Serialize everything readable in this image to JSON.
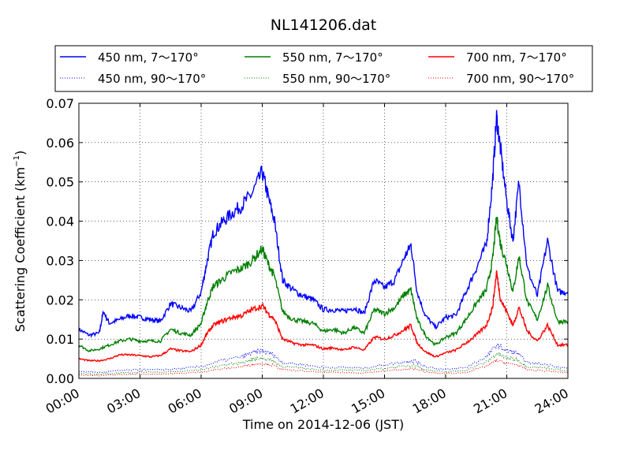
{
  "chart_data": {
    "type": "line",
    "title": "NL141206.dat",
    "xlabel": "Time on 2014-12-06 (JST)",
    "ylabel": "Scattering Coefficient (km",
    "ylabel_sup": "−1",
    "ylabel_end": ")",
    "x_unit": "hours",
    "xlim": [
      0,
      24
    ],
    "ylim": [
      0,
      0.07
    ],
    "x_ticks": [
      0,
      3,
      6,
      9,
      12,
      15,
      18,
      21,
      24
    ],
    "x_tick_labels": [
      "00:00",
      "03:00",
      "06:00",
      "09:00",
      "12:00",
      "15:00",
      "18:00",
      "21:00",
      "24:00"
    ],
    "y_ticks": [
      0,
      0.01,
      0.02,
      0.03,
      0.04,
      0.05,
      0.06,
      0.07
    ],
    "y_tick_labels": [
      "0.00",
      "0.01",
      "0.02",
      "0.03",
      "0.04",
      "0.05",
      "0.06",
      "0.07"
    ],
    "grid": true,
    "legend_position": "top, above plot, 3 columns",
    "series": [
      {
        "name": "450 nm, 7～170°",
        "color": "#0000ff",
        "style": "solid",
        "x": [
          0,
          0.5,
          1,
          1.2,
          1.5,
          2,
          2.5,
          3,
          3.5,
          4,
          4.5,
          5,
          5.5,
          6,
          6.3,
          6.6,
          7,
          7.5,
          8,
          8.5,
          9,
          9.3,
          9.6,
          10,
          10.5,
          11,
          11.5,
          12,
          12.5,
          13,
          13.5,
          14,
          14.5,
          15,
          15.5,
          16,
          16.3,
          16.6,
          17,
          17.5,
          18,
          18.5,
          19,
          19.5,
          20,
          20.3,
          20.5,
          20.7,
          21,
          21.3,
          21.6,
          22,
          22.5,
          23,
          23.5,
          24
        ],
        "y": [
          0.0125,
          0.011,
          0.0115,
          0.017,
          0.014,
          0.015,
          0.016,
          0.0155,
          0.015,
          0.0145,
          0.019,
          0.018,
          0.017,
          0.022,
          0.03,
          0.037,
          0.0395,
          0.042,
          0.044,
          0.047,
          0.0525,
          0.046,
          0.04,
          0.025,
          0.0225,
          0.021,
          0.02,
          0.0175,
          0.0175,
          0.017,
          0.018,
          0.0165,
          0.025,
          0.023,
          0.025,
          0.031,
          0.034,
          0.022,
          0.016,
          0.013,
          0.0155,
          0.016,
          0.022,
          0.028,
          0.034,
          0.05,
          0.0665,
          0.058,
          0.045,
          0.035,
          0.05,
          0.028,
          0.021,
          0.035,
          0.022,
          0.022
        ]
      },
      {
        "name": "550 nm, 7～170°",
        "color": "#008000",
        "style": "solid",
        "x": [
          0,
          0.5,
          1,
          1.5,
          2,
          2.5,
          3,
          3.5,
          4,
          4.5,
          5,
          5.5,
          6,
          6.3,
          6.6,
          7,
          7.5,
          8,
          8.5,
          9,
          9.3,
          9.6,
          10,
          10.5,
          11,
          11.5,
          12,
          12.5,
          13,
          13.5,
          14,
          14.5,
          15,
          15.5,
          16,
          16.3,
          16.6,
          17,
          17.5,
          18,
          18.5,
          19,
          19.5,
          20,
          20.3,
          20.5,
          20.7,
          21,
          21.3,
          21.6,
          22,
          22.5,
          23,
          23.5,
          24
        ],
        "y": [
          0.0085,
          0.007,
          0.0075,
          0.0085,
          0.0095,
          0.01,
          0.0095,
          0.0095,
          0.0095,
          0.0125,
          0.0115,
          0.011,
          0.014,
          0.0195,
          0.0235,
          0.025,
          0.027,
          0.028,
          0.03,
          0.033,
          0.029,
          0.026,
          0.017,
          0.015,
          0.0145,
          0.014,
          0.012,
          0.0125,
          0.0115,
          0.013,
          0.0115,
          0.0175,
          0.0165,
          0.018,
          0.0215,
          0.0225,
          0.015,
          0.011,
          0.0085,
          0.0105,
          0.0115,
          0.015,
          0.019,
          0.0225,
          0.03,
          0.041,
          0.034,
          0.029,
          0.022,
          0.031,
          0.0195,
          0.015,
          0.0235,
          0.0145,
          0.0145
        ]
      },
      {
        "name": "700 nm, 7～170°",
        "color": "#ff0000",
        "style": "solid",
        "x": [
          0,
          0.5,
          1,
          1.5,
          2,
          2.5,
          3,
          3.5,
          4,
          4.5,
          5,
          5.5,
          6,
          6.3,
          6.6,
          7,
          7.5,
          8,
          8.5,
          9,
          9.3,
          9.6,
          10,
          10.5,
          11,
          11.5,
          12,
          12.5,
          13,
          13.5,
          14,
          14.5,
          15,
          15.5,
          16,
          16.3,
          16.6,
          17,
          17.5,
          18,
          18.5,
          19,
          19.5,
          20,
          20.3,
          20.5,
          20.7,
          21,
          21.3,
          21.6,
          22,
          22.5,
          23,
          23.5,
          24
        ],
        "y": [
          0.005,
          0.0045,
          0.0045,
          0.005,
          0.006,
          0.006,
          0.0058,
          0.0055,
          0.0058,
          0.0075,
          0.007,
          0.0068,
          0.0085,
          0.0115,
          0.0135,
          0.0145,
          0.0155,
          0.016,
          0.0175,
          0.0185,
          0.0165,
          0.015,
          0.01,
          0.009,
          0.0085,
          0.0085,
          0.0075,
          0.0078,
          0.0072,
          0.008,
          0.0072,
          0.0105,
          0.01,
          0.011,
          0.0125,
          0.0135,
          0.009,
          0.0068,
          0.0055,
          0.0065,
          0.0072,
          0.009,
          0.011,
          0.0135,
          0.018,
          0.027,
          0.02,
          0.017,
          0.0135,
          0.018,
          0.012,
          0.0095,
          0.0135,
          0.0085,
          0.0085
        ]
      },
      {
        "name": "450 nm, 90～170°",
        "color": "#0000ff",
        "style": "dotted",
        "x": [
          0,
          1,
          2,
          3,
          4,
          5,
          6,
          7,
          8,
          8.5,
          9,
          9.5,
          10,
          11,
          12,
          13,
          14,
          15,
          16,
          16.5,
          17,
          18,
          19,
          20,
          20.5,
          21,
          21.5,
          22,
          23,
          24
        ],
        "y": [
          0.0018,
          0.0015,
          0.002,
          0.0022,
          0.0022,
          0.0025,
          0.003,
          0.0045,
          0.0055,
          0.0065,
          0.007,
          0.0062,
          0.004,
          0.0035,
          0.0028,
          0.0028,
          0.0026,
          0.0035,
          0.0042,
          0.0045,
          0.003,
          0.0022,
          0.0028,
          0.0055,
          0.0085,
          0.007,
          0.0065,
          0.004,
          0.0035,
          0.0025
        ]
      },
      {
        "name": "550 nm, 90～170°",
        "color": "#008000",
        "style": "dotted",
        "x": [
          0,
          1,
          2,
          3,
          4,
          5,
          6,
          7,
          8,
          8.5,
          9,
          9.5,
          10,
          11,
          12,
          13,
          14,
          15,
          16,
          16.5,
          17,
          18,
          19,
          20,
          20.5,
          21,
          21.5,
          22,
          23,
          24
        ],
        "y": [
          0.0012,
          0.001,
          0.0014,
          0.0016,
          0.0016,
          0.0018,
          0.0022,
          0.0033,
          0.004,
          0.0048,
          0.0052,
          0.0046,
          0.003,
          0.0026,
          0.0021,
          0.0021,
          0.002,
          0.0026,
          0.0031,
          0.0034,
          0.0022,
          0.0016,
          0.0021,
          0.0042,
          0.0063,
          0.0052,
          0.0048,
          0.003,
          0.0026,
          0.0019
        ]
      },
      {
        "name": "700 nm, 90～170°",
        "color": "#ff0000",
        "style": "dotted",
        "x": [
          0,
          1,
          2,
          3,
          4,
          5,
          6,
          7,
          8,
          8.5,
          9,
          9.5,
          10,
          11,
          12,
          13,
          14,
          15,
          16,
          16.5,
          17,
          18,
          19,
          20,
          20.5,
          21,
          21.5,
          22,
          23,
          24
        ],
        "y": [
          0.0008,
          0.0007,
          0.001,
          0.0011,
          0.0011,
          0.0013,
          0.0016,
          0.0024,
          0.003,
          0.0035,
          0.0038,
          0.0034,
          0.0022,
          0.0019,
          0.0015,
          0.0015,
          0.0014,
          0.0019,
          0.0023,
          0.0025,
          0.0016,
          0.0012,
          0.0015,
          0.0031,
          0.0046,
          0.0038,
          0.0035,
          0.0022,
          0.0019,
          0.0014
        ]
      }
    ],
    "legend_order": [
      0,
      1,
      2,
      3,
      4,
      5
    ]
  }
}
